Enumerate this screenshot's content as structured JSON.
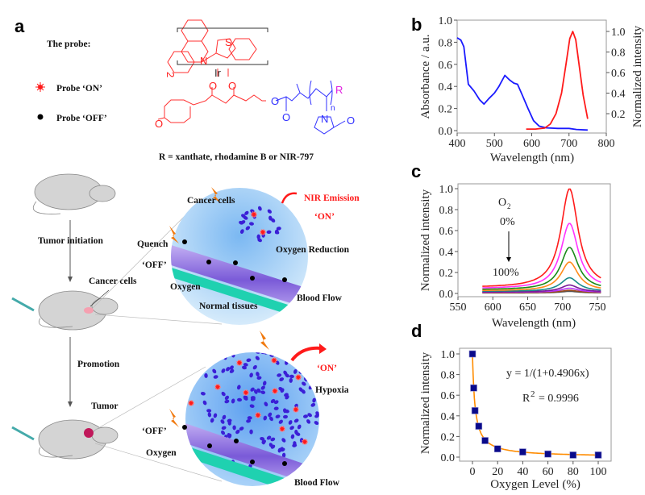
{
  "panel_a": {
    "letter": "a",
    "probe_title": "The probe:",
    "legend_on": "Probe ‘ON’",
    "legend_off": "Probe ‘OFF’",
    "structure": {
      "atom_S": "S",
      "atom_N": "N",
      "atom_Ir": "Ir",
      "atom_O": "O",
      "subscript_2": "2",
      "r_group": "R",
      "n_label": "n"
    },
    "r_definition": "R = xanthate, rhodamine B or NIR-797",
    "steps": {
      "tumor_initiation": "Tumor initiation",
      "promotion": "Promotion"
    },
    "labels": {
      "cancer_cells_mouse": "Cancer cells",
      "cancer_cells_circle": "Cancer cells",
      "nir_emission": "NIR Emission",
      "on_top": "‘ON’",
      "quench": "Quench",
      "off_top": "‘OFF’",
      "oxygen_reduction": "Oxygen Reduction",
      "oxygen_top": "Oxygen",
      "blood_flow_top": "Blood Flow",
      "normal_tissues": "Normal tissues",
      "tumor": "Tumor",
      "on_bottom": "‘ON’",
      "hypoxia": "Hypoxia",
      "off_bottom": "‘OFF’",
      "oxygen_bottom": "Oxygen",
      "blood_flow_bottom": "Blood Flow"
    },
    "colors": {
      "probe_on": "#ff1a1a",
      "probe_off": "#000000",
      "cell": "#3b1fd6",
      "circle": "#8cc4f5",
      "vessel": "#9a7fe0",
      "lightning": "#f07a10"
    }
  },
  "chart_data": [
    {
      "panel": "b",
      "type": "line",
      "xlabel": "Wavelength (nm)",
      "ylabel": "Absorbance / a.u.",
      "ylabel_right": "Normalized intensity",
      "xlim": [
        400,
        800
      ],
      "ylim": [
        0,
        1.0
      ],
      "ylim_right": [
        0,
        1.1
      ],
      "xticks": [
        400,
        500,
        600,
        700,
        800
      ],
      "yticks": [
        "0.0",
        "0.2",
        "0.4",
        "0.6",
        "0.8",
        "1.0"
      ],
      "yticks_right": [
        "0.2",
        "0.4",
        "0.6",
        "0.8",
        "1.0"
      ],
      "series": [
        {
          "axis": "left",
          "color": "#1a1aff",
          "x": [
            400,
            410,
            418,
            430,
            445,
            460,
            472,
            485,
            500,
            512,
            528,
            540,
            552,
            562,
            575,
            590,
            605,
            620,
            640,
            670,
            700,
            720,
            750
          ],
          "y": [
            0.84,
            0.82,
            0.76,
            0.42,
            0.36,
            0.28,
            0.24,
            0.29,
            0.34,
            0.4,
            0.5,
            0.46,
            0.43,
            0.42,
            0.32,
            0.2,
            0.09,
            0.04,
            0.025,
            0.02,
            0.02,
            0.01,
            0.005
          ]
        },
        {
          "axis": "right",
          "color": "#ff1a1a",
          "x": [
            585,
            610,
            635,
            650,
            665,
            680,
            692,
            702,
            710,
            718,
            728,
            738,
            750
          ],
          "y": [
            0.05,
            0.05,
            0.06,
            0.1,
            0.2,
            0.4,
            0.68,
            0.93,
            1.0,
            0.92,
            0.65,
            0.38,
            0.15
          ]
        }
      ]
    },
    {
      "panel": "c",
      "type": "line",
      "xlabel": "Wavelength (nm)",
      "ylabel": "Normalized intensity",
      "xlim": [
        550,
        770
      ],
      "ylim": [
        0,
        1.05
      ],
      "xticks": [
        550,
        600,
        650,
        700,
        750
      ],
      "yticks": [
        "0.0",
        "0.2",
        "0.4",
        "0.6",
        "0.8",
        "1.0"
      ],
      "annotation": {
        "gas": "O",
        "gas_sub": "2",
        "start": "0%",
        "end": "100%"
      },
      "x_range": [
        585,
        755
      ],
      "peak_wavelength": 710,
      "series": [
        {
          "color": "#ff1a1a",
          "peak": 1.0,
          "baseline": 0.055
        },
        {
          "color": "#ff33ff",
          "peak": 0.67,
          "baseline": 0.045
        },
        {
          "color": "#1a8a1a",
          "peak": 0.44,
          "baseline": 0.035
        },
        {
          "color": "#ff8c1a",
          "peak": 0.3,
          "baseline": 0.025
        },
        {
          "color": "#1a8a8a",
          "peak": 0.15,
          "baseline": 0.02
        },
        {
          "color": "#7a1a9a",
          "peak": 0.08,
          "baseline": 0.015
        },
        {
          "color": "#b833ff",
          "peak": 0.05,
          "baseline": 0.012
        },
        {
          "color": "#9a4a1a",
          "peak": 0.03,
          "baseline": 0.008
        },
        {
          "color": "#555555",
          "peak": 0.02,
          "baseline": 0.005
        }
      ]
    },
    {
      "panel": "d",
      "type": "scatter",
      "xlabel": "Oxygen Level (%)",
      "ylabel": "Normalized intensity",
      "xlim": [
        -10,
        105
      ],
      "ylim": [
        -0.03,
        1.05
      ],
      "xticks": [
        0,
        20,
        40,
        60,
        80,
        100
      ],
      "yticks": [
        "0.0",
        "0.2",
        "0.4",
        "0.6",
        "0.8",
        "1.0"
      ],
      "x": [
        0,
        1,
        2,
        5,
        10,
        20,
        40,
        60,
        80,
        100
      ],
      "y": [
        1.0,
        0.67,
        0.45,
        0.3,
        0.16,
        0.08,
        0.05,
        0.03,
        0.02,
        0.02
      ],
      "marker_color": "#0a0a8a",
      "fit": {
        "a": 0.4906,
        "color": "#ff8c00",
        "equation": "y = 1/(1+0.4906x)",
        "r2_label": "R",
        "r2_sup": "2",
        "r2_value": "= 0.9996"
      }
    }
  ],
  "panel_letters": {
    "b": "b",
    "c": "c",
    "d": "d"
  }
}
